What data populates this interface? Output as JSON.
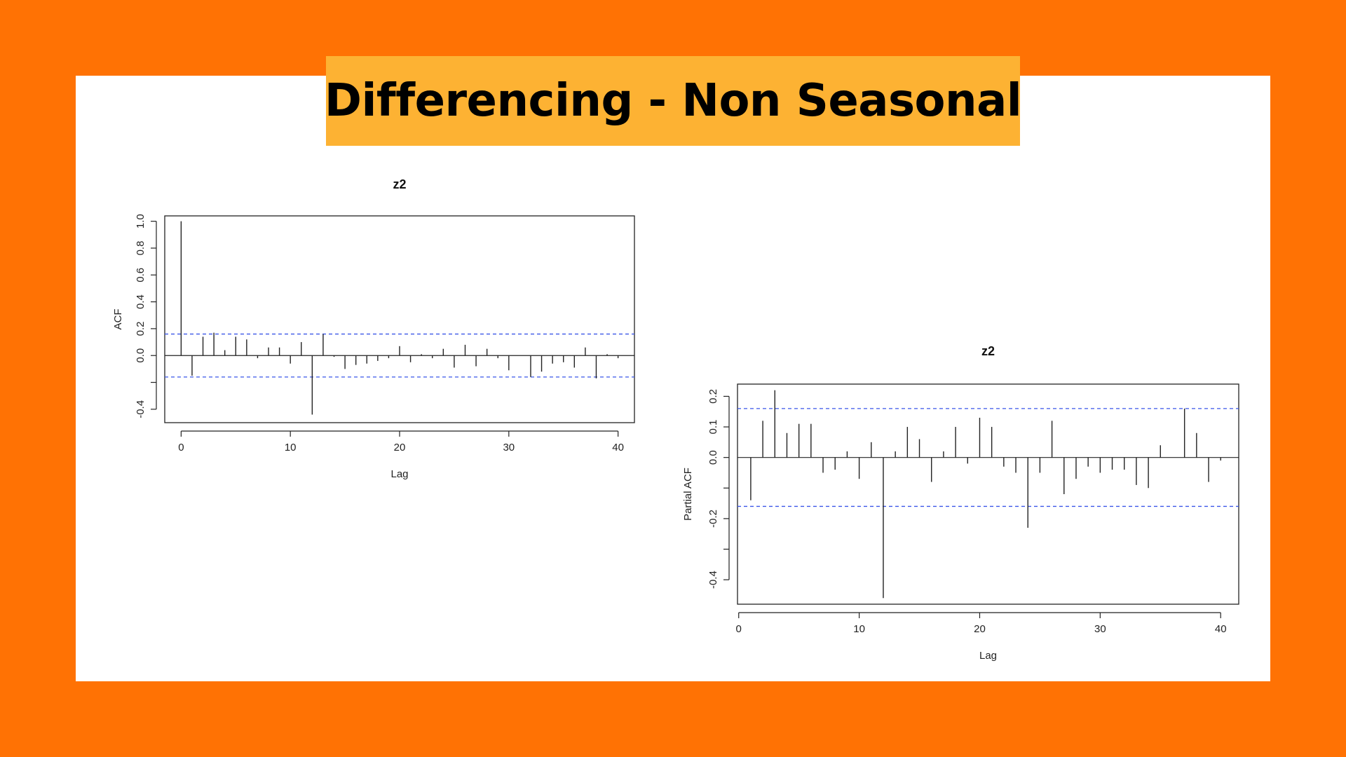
{
  "page": {
    "title": "Differencing - Non Seasonal",
    "colors": {
      "background": "#ff7204",
      "panel": "#ffffff",
      "title_banner": "#fdb233",
      "confidence_band": "#3a56e8"
    }
  },
  "chart_data": [
    {
      "type": "bar",
      "title": "z2",
      "xlabel": "Lag",
      "ylabel": "ACF",
      "xlim": [
        -1.5,
        41.5
      ],
      "ylim": [
        -0.5,
        1.04
      ],
      "x_ticks": [
        0,
        10,
        20,
        30,
        40
      ],
      "y_ticks": [
        -0.4,
        -0.2,
        0.0,
        0.2,
        0.4,
        0.6,
        0.8,
        1.0
      ],
      "y_tick_labels": [
        "-0.4",
        "",
        "0.0",
        "0.2",
        "0.4",
        "0.6",
        "0.8",
        "1.0"
      ],
      "confidence_band": [
        -0.16,
        0.16
      ],
      "legend": "none",
      "grid": false,
      "x": [
        0,
        1,
        2,
        3,
        4,
        5,
        6,
        7,
        8,
        9,
        10,
        11,
        12,
        13,
        14,
        15,
        16,
        17,
        18,
        19,
        20,
        21,
        22,
        23,
        24,
        25,
        26,
        27,
        28,
        29,
        30,
        31,
        32,
        33,
        34,
        35,
        36,
        37,
        38,
        39,
        40
      ],
      "values": [
        1.0,
        -0.15,
        0.14,
        0.17,
        0.04,
        0.14,
        0.12,
        -0.02,
        0.06,
        0.06,
        -0.06,
        0.1,
        -0.44,
        0.16,
        -0.01,
        -0.1,
        -0.07,
        -0.06,
        -0.04,
        -0.02,
        0.07,
        -0.05,
        0.01,
        -0.02,
        0.05,
        -0.09,
        0.08,
        -0.08,
        0.05,
        -0.02,
        -0.11,
        0.0,
        -0.16,
        -0.12,
        -0.06,
        -0.05,
        -0.09,
        0.06,
        -0.17,
        0.01,
        -0.02
      ]
    },
    {
      "type": "bar",
      "title": "z2",
      "xlabel": "Lag",
      "ylabel": "Partial ACF",
      "xlim": [
        -0.1,
        41.5
      ],
      "ylim": [
        -0.48,
        0.24
      ],
      "x_ticks": [
        0,
        10,
        20,
        30,
        40
      ],
      "y_ticks": [
        -0.4,
        -0.3,
        -0.2,
        -0.1,
        0.0,
        0.1,
        0.2
      ],
      "y_tick_labels": [
        "-0.4",
        "",
        "-0.2",
        "",
        "0.0",
        "0.1",
        "0.2"
      ],
      "confidence_band": [
        -0.16,
        0.16
      ],
      "legend": "none",
      "grid": false,
      "x": [
        1,
        2,
        3,
        4,
        5,
        6,
        7,
        8,
        9,
        10,
        11,
        12,
        13,
        14,
        15,
        16,
        17,
        18,
        19,
        20,
        21,
        22,
        23,
        24,
        25,
        26,
        27,
        28,
        29,
        30,
        31,
        32,
        33,
        34,
        35,
        36,
        37,
        38,
        39,
        40
      ],
      "values": [
        -0.14,
        0.12,
        0.22,
        0.08,
        0.11,
        0.11,
        -0.05,
        -0.04,
        0.02,
        -0.07,
        0.05,
        -0.46,
        0.02,
        0.1,
        0.06,
        -0.08,
        0.02,
        0.1,
        -0.02,
        0.13,
        0.1,
        -0.03,
        -0.05,
        -0.23,
        -0.05,
        0.12,
        -0.12,
        -0.07,
        -0.03,
        -0.05,
        -0.04,
        -0.04,
        -0.09,
        -0.1,
        0.04,
        0.0,
        0.16,
        0.08,
        -0.08,
        -0.01
      ]
    }
  ]
}
